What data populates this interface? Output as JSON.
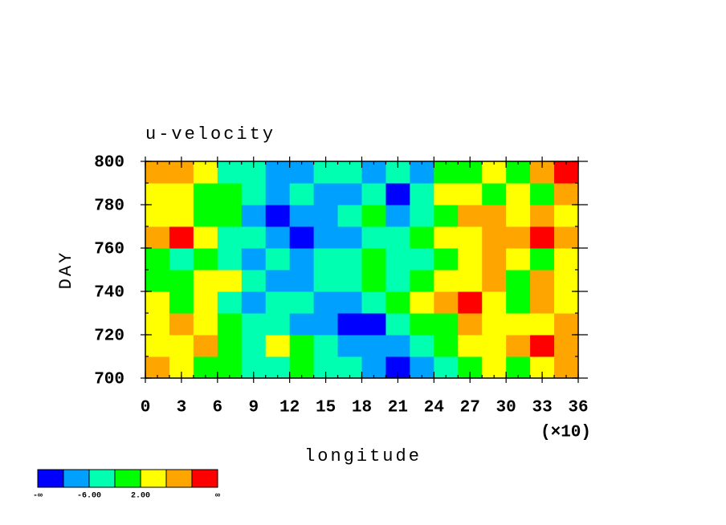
{
  "chart_data": {
    "type": "heatmap",
    "title": "u-velocity",
    "xlabel": "longitude",
    "ylabel": "DAY",
    "x_multiplier": "(×10)",
    "xlim": [
      0,
      36
    ],
    "ylim": [
      700,
      800
    ],
    "xticks": [
      0,
      3,
      6,
      9,
      12,
      15,
      18,
      21,
      24,
      27,
      30,
      33,
      36
    ],
    "yticks": [
      700,
      720,
      740,
      760,
      780,
      800
    ],
    "xminor_step": 1,
    "yminor_step": 10,
    "xbins": [
      0,
      2,
      4,
      6,
      8,
      10,
      12,
      14,
      16,
      18,
      20,
      22,
      24,
      26,
      28,
      30,
      32,
      34,
      36
    ],
    "ybins": [
      700,
      710,
      720,
      730,
      740,
      750,
      760,
      770,
      780,
      790,
      800
    ],
    "z": [
      [
        10,
        4,
        2,
        0,
        -3,
        -4,
        0,
        -2,
        -5,
        -8,
        -11,
        -9,
        -4,
        0,
        4,
        1,
        6,
        10
      ],
      [
        4,
        6,
        8,
        2,
        -2,
        5,
        0,
        -3,
        -6,
        -9,
        -7,
        -3,
        0,
        6,
        4,
        8,
        11,
        8
      ],
      [
        6,
        9,
        3,
        -1,
        -4,
        -2,
        -6,
        -9,
        -12,
        -11,
        -5,
        -1,
        2,
        7,
        4,
        3,
        5,
        7
      ],
      [
        3,
        1,
        5,
        -2,
        -6,
        -3,
        -5,
        -8,
        -6,
        -4,
        0,
        3,
        8,
        11,
        6,
        2,
        9,
        4
      ],
      [
        -1,
        2,
        4,
        6,
        -3,
        -7,
        -9,
        -5,
        -2,
        1,
        -3,
        -1,
        5,
        3,
        7,
        1,
        10,
        6
      ],
      [
        2,
        -2,
        0,
        -4,
        -6,
        -3,
        -8,
        -5,
        -3,
        -1,
        -4,
        -2,
        2,
        5,
        9,
        4,
        0,
        3
      ],
      [
        10,
        11,
        6,
        -3,
        -5,
        -8,
        -11,
        -9,
        -7,
        -2,
        -5,
        -1,
        4,
        6,
        8,
        10,
        11,
        9
      ],
      [
        3,
        5,
        1,
        -1,
        -6,
        -11,
        -9,
        -6,
        -3,
        -1,
        -6,
        -2,
        1,
        7,
        9,
        5,
        8,
        4
      ],
      [
        6,
        3,
        2,
        0,
        -4,
        -8,
        -5,
        -9,
        -7,
        -5,
        -10,
        -4,
        3,
        5,
        2,
        6,
        1,
        8
      ],
      [
        10,
        8,
        3,
        -2,
        -5,
        -9,
        -6,
        -2,
        -4,
        -8,
        -3,
        -6,
        -1,
        2,
        4,
        0,
        7,
        11
      ]
    ],
    "colorbar": {
      "colors": [
        "#0000ff",
        "#00a0ff",
        "#00ffb0",
        "#00ff00",
        "#ffff00",
        "#ffa500",
        "#ff0000"
      ],
      "levels": [
        -10,
        -6,
        -2,
        2,
        6,
        10
      ],
      "ticks": [
        {
          "value": -6,
          "label": "-6.00"
        },
        {
          "value": 2,
          "label": "2.00"
        }
      ],
      "low_label": "-∞",
      "high_label": "∞"
    }
  }
}
